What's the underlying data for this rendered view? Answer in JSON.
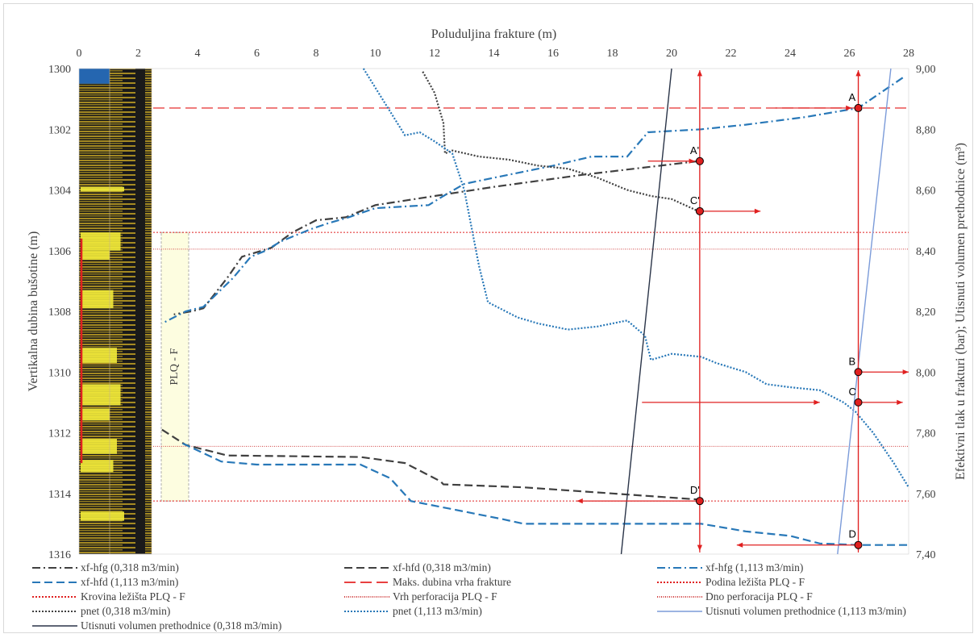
{
  "chart_data": {
    "type": "line",
    "title": "",
    "xlabel_top": "Poluduljina frakture (m)",
    "ylabel_left": "Vertikalna dubina bušotine (m)",
    "ylabel_right": "Efektivni tlak u frakturi (bar); Utisnuti volumen prethodnice (m³)",
    "x_range": [
      0,
      28
    ],
    "x_ticks": [
      "0",
      "2",
      "4",
      "6",
      "8",
      "10",
      "12",
      "14",
      "16",
      "18",
      "20",
      "22",
      "24",
      "26",
      "28"
    ],
    "y_left_range": [
      1300,
      1316
    ],
    "y_left_ticks": [
      "1300",
      "1302",
      "1304",
      "1306",
      "1308",
      "1310",
      "1312",
      "1314",
      "1316"
    ],
    "y_right_range": [
      9.0,
      7.4
    ],
    "y_right_ticks": [
      "9,00",
      "8,80",
      "8,60",
      "8,40",
      "8,20",
      "8,00",
      "7,80",
      "7,60",
      "7,40"
    ],
    "zone_label": "PLQ - F",
    "horizontal_lines": [
      {
        "name": "Maks. dubina vrha frakture",
        "depth": 1301.3,
        "color": "#e84040",
        "style": "long-dash"
      },
      {
        "name": "Krovina ležišta PLQ - F",
        "depth": 1305.4,
        "color": "#e02020",
        "style": "dot"
      },
      {
        "name": "Vrh perforacija PLQ - F",
        "depth": 1305.95,
        "color": "#d04040",
        "style": "fine-dot"
      },
      {
        "name": "Dno perforacija PLQ - F",
        "depth": 1312.45,
        "color": "#d04040",
        "style": "fine-dot"
      },
      {
        "name": "Podina ležišta PLQ - F",
        "depth": 1314.25,
        "color": "#e02020",
        "style": "dot"
      }
    ],
    "series": [
      {
        "name": "xf-hfg (0,318 m3/min)",
        "color": "#404040",
        "style": "dash-dot",
        "x": [
          20.9,
          17,
          14,
          12,
          11,
          10,
          9,
          8,
          7.2,
          6.5,
          5.5,
          5.0,
          4.2,
          3.8,
          3.2
        ],
        "y": [
          1303.05,
          1303.5,
          1303.9,
          1304.2,
          1304.35,
          1304.5,
          1304.9,
          1305.0,
          1305.4,
          1305.9,
          1306.2,
          1306.9,
          1307.9,
          1308.0,
          1308.1
        ]
      },
      {
        "name": "xf-hfd (0,318 m3/min)",
        "color": "#404040",
        "style": "dash",
        "x": [
          2.8,
          3.6,
          5.0,
          9.5,
          11,
          12.2,
          12.3,
          15,
          18,
          20.9
        ],
        "y": [
          1311.9,
          1312.4,
          1312.75,
          1312.8,
          1313.0,
          1313.6,
          1313.7,
          1313.8,
          1314.0,
          1314.2
        ],
        "x2": [],
        "y2": []
      },
      {
        "name": "xf-hfg (1,113 m3/min)",
        "color": "#2878b8",
        "style": "dash-dot",
        "x": [
          27.8,
          26.3,
          24.5,
          22.5,
          21,
          19.2,
          18.5,
          17.3,
          16,
          15,
          14,
          13.0,
          12.3,
          11.8,
          10,
          9.1,
          8.4,
          7.8,
          6.8,
          6.3,
          5.8,
          5.2,
          4.2,
          3.6,
          2.8
        ],
        "y": [
          1300.3,
          1301.3,
          1301.6,
          1301.85,
          1302.0,
          1302.1,
          1302.9,
          1302.9,
          1303.2,
          1303.4,
          1303.6,
          1303.8,
          1304.2,
          1304.5,
          1304.6,
          1304.9,
          1305.1,
          1305.3,
          1305.7,
          1306.0,
          1306.2,
          1306.9,
          1307.85,
          1308.0,
          1308.4
        ]
      },
      {
        "name": "xf-hfd (1,113 m3/min)",
        "color": "#2878b8",
        "style": "dash",
        "x": [
          3.5,
          4.8,
          6.0,
          9.5,
          10.5,
          11.2,
          12.5,
          14.3,
          15.0,
          21.0,
          22.5,
          24.0,
          25.0,
          26.3,
          28
        ],
        "y": [
          1312.35,
          1312.95,
          1313.05,
          1313.05,
          1313.5,
          1314.25,
          1314.5,
          1314.85,
          1315.0,
          1315.0,
          1315.25,
          1315.4,
          1315.65,
          1315.7,
          1315.7
        ]
      },
      {
        "name": "pnet (0,318 m3/min)",
        "color": "#404040",
        "style": "dot",
        "x": [
          11.6,
          12.0,
          12.3,
          12.35,
          12.6,
          13.5,
          14.5,
          15.5,
          16.5,
          17.5,
          18.5,
          19.3,
          20.0,
          20.9
        ],
        "y": [
          8.99,
          8.92,
          8.82,
          8.72,
          8.73,
          8.71,
          8.7,
          8.68,
          8.67,
          8.64,
          8.6,
          8.58,
          8.57,
          8.53
        ],
        "axis": "right"
      },
      {
        "name": "pnet (1,113 m3/min)",
        "color": "#2878b8",
        "style": "dot",
        "x": [
          9.6,
          10.3,
          11.0,
          11.5,
          12.0,
          12.6,
          13.0,
          13.5,
          13.8,
          14.4,
          14.8,
          15.5,
          16.5,
          17.5,
          18.5,
          19.1,
          19.3,
          20.0,
          21.0,
          21.5,
          22.5,
          23.2,
          24.0,
          25.0,
          25.8,
          26.2,
          26.8,
          27.5,
          28
        ],
        "y": [
          9.0,
          8.89,
          8.78,
          8.79,
          8.76,
          8.72,
          8.6,
          8.35,
          8.23,
          8.2,
          8.18,
          8.16,
          8.14,
          8.15,
          8.17,
          8.12,
          8.04,
          8.06,
          8.05,
          8.03,
          8.0,
          7.96,
          7.95,
          7.94,
          7.9,
          7.87,
          7.8,
          7.7,
          7.62
        ],
        "axis": "right"
      },
      {
        "name": "Utisnuti volumen prethodnice (1,113 m3/min)",
        "color": "#7b9bd9",
        "style": "solid",
        "x": [
          25.6,
          27.4
        ],
        "y": [
          7.4,
          9.0
        ],
        "axis": "right"
      },
      {
        "name": "Utisnuti volumen prethodnice (0,318 m3/min)",
        "color": "#2a3448",
        "style": "solid",
        "x": [
          18.3,
          20.0
        ],
        "y": [
          7.4,
          9.0
        ],
        "axis": "right"
      }
    ],
    "points": [
      {
        "label": "A",
        "x": 26.3,
        "depth": 1301.3
      },
      {
        "label": "A'",
        "x": 20.95,
        "depth": 1303.05
      },
      {
        "label": "C'",
        "x": 20.95,
        "depth": 1304.7
      },
      {
        "label": "B",
        "x": 26.3,
        "depth": 1310.0
      },
      {
        "label": "C",
        "x": 26.3,
        "depth": 1311.0
      },
      {
        "label": "D'",
        "x": 20.95,
        "depth": 1314.25
      },
      {
        "label": "D",
        "x": 26.3,
        "depth": 1315.7
      }
    ],
    "legend_position": "bottom"
  }
}
